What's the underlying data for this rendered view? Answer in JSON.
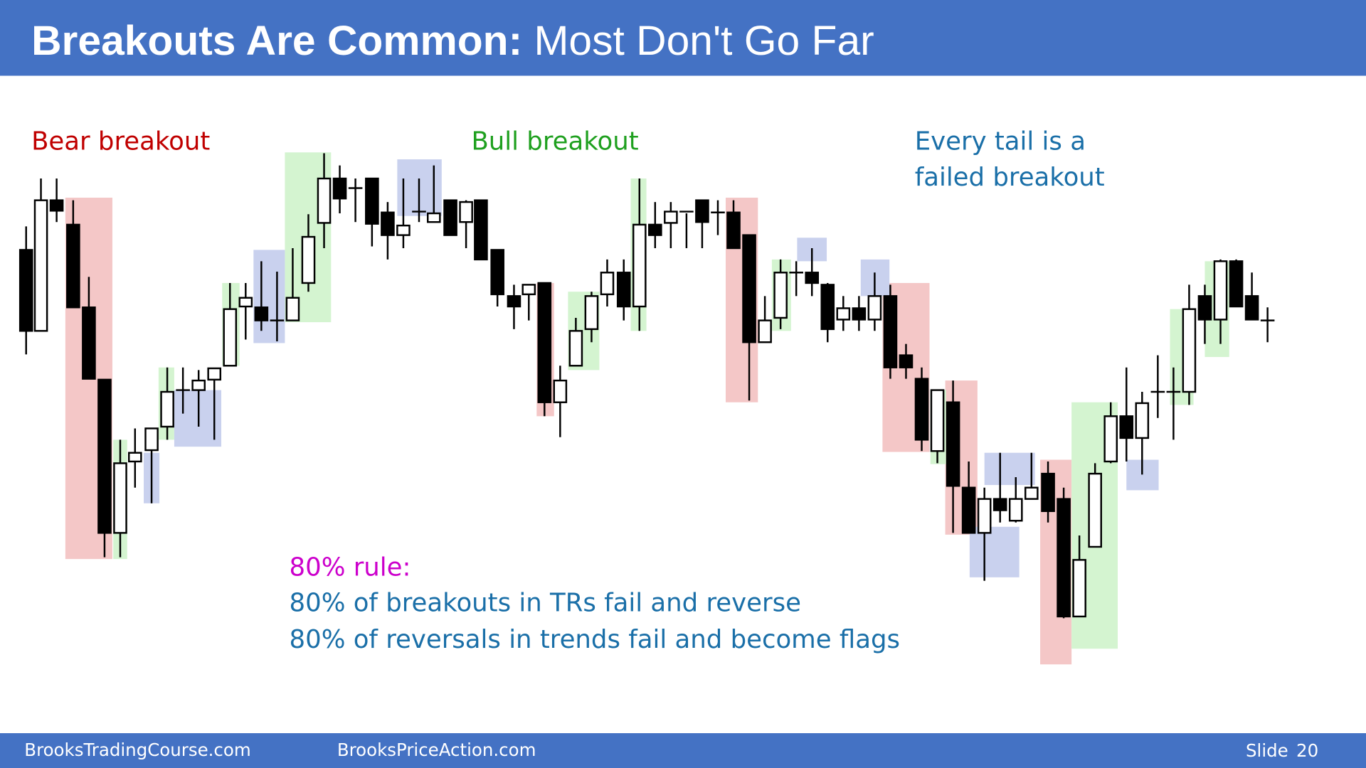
{
  "header": {
    "title_bold": "Breakouts Are Common:",
    "title_rest": "Most Don't Go Far"
  },
  "annotations": {
    "bear": "Bear breakout",
    "bull": "Bull breakout",
    "tail_line1": "Every tail is a",
    "tail_line2": "failed breakout",
    "rule_title": "80% rule:",
    "rule_line1": "80% of breakouts in TRs fail and reverse",
    "rule_line2": "80% of reversals in trends fail and become flags"
  },
  "footer": {
    "left": "BrooksTradingCourse.com",
    "middle": "BrooksPriceAction.com",
    "slide_label": "Slide",
    "slide_number": "20"
  }
}
